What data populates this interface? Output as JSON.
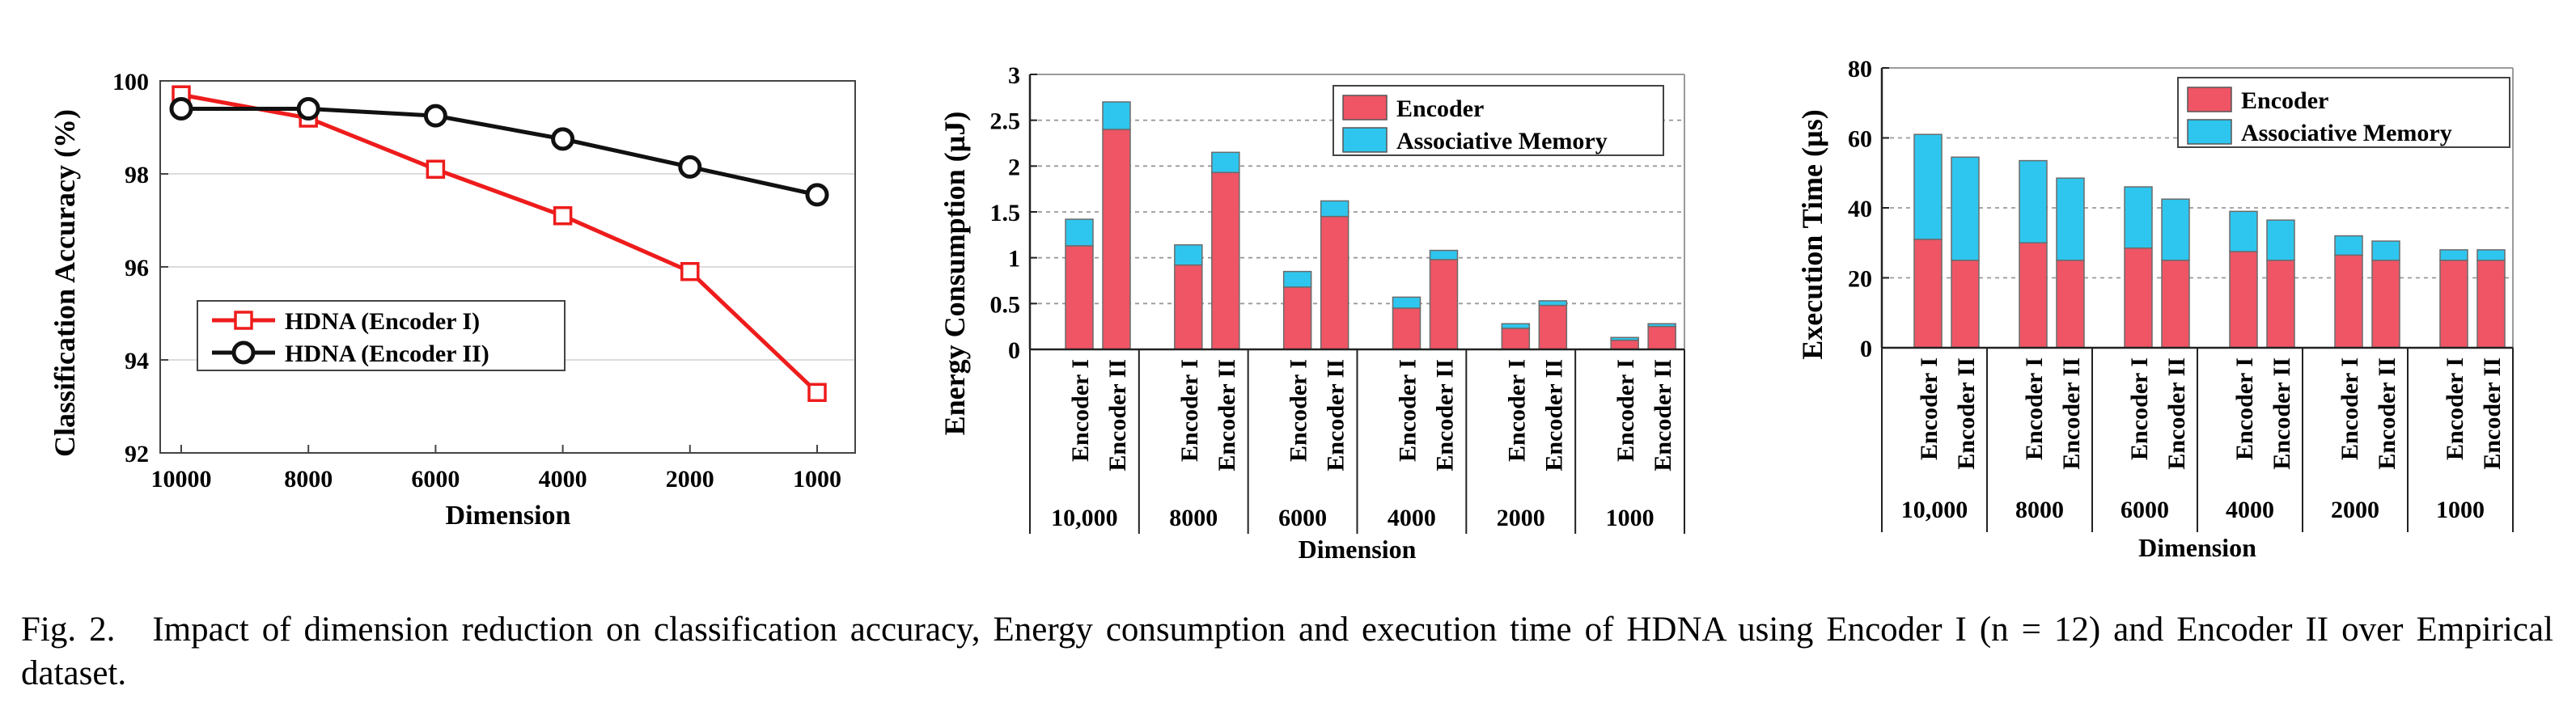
{
  "colors": {
    "red_series": "#ee1c1c",
    "black_series": "#111111",
    "encoder": "#ef5565",
    "associative_memory": "#2ec6ee",
    "grid": "#bdbdbd",
    "axis": "#444444"
  },
  "caption": {
    "label": "Fig. 2.",
    "text": "Impact of dimension reduction on classification accuracy, Energy consumption and execution time of HDNA using Encoder I (n = 12) and Encoder II over Empirical dataset."
  },
  "chart_data": [
    {
      "type": "line",
      "xlabel": "Dimension",
      "ylabel": "Classification Accuracy (%)",
      "x": [
        "10000",
        "8000",
        "6000",
        "4000",
        "2000",
        "1000"
      ],
      "ylim": [
        92,
        100
      ],
      "yticks": [
        "92",
        "94",
        "96",
        "98",
        "100"
      ],
      "grid": "horizontal",
      "legend_position": "bottom-left",
      "series": [
        {
          "name": "HDNA (Encoder I)",
          "marker": "square",
          "color": "#ee1c1c",
          "values": [
            99.7,
            99.2,
            98.1,
            97.1,
            95.9,
            93.3
          ]
        },
        {
          "name": "HDNA (Encoder II)",
          "marker": "circle",
          "color": "#111111",
          "values": [
            99.4,
            99.4,
            99.25,
            98.75,
            98.15,
            97.55
          ]
        }
      ]
    },
    {
      "type": "bar",
      "stacked": true,
      "xlabel": "Dimension",
      "ylabel": "Energy Consumption (µJ)",
      "ylim": [
        0,
        3
      ],
      "yticks": [
        "0",
        "0.5",
        "1",
        "1.5",
        "2",
        "2.5",
        "3"
      ],
      "grid": "horizontal-dotted",
      "legend_position": "top-right",
      "groups": [
        "10,000",
        "8000",
        "6000",
        "4000",
        "2000",
        "1000"
      ],
      "bar_labels": [
        "Encoder I",
        "Encoder II"
      ],
      "series": [
        {
          "name": "Encoder",
          "color": "#ef5565",
          "values": [
            [
              1.13,
              2.4
            ],
            [
              0.92,
              1.93
            ],
            [
              0.68,
              1.45
            ],
            [
              0.45,
              0.98
            ],
            [
              0.23,
              0.48
            ],
            [
              0.1,
              0.25
            ]
          ]
        },
        {
          "name": "Associative Memory",
          "color": "#2ec6ee",
          "values": [
            [
              0.29,
              0.3
            ],
            [
              0.22,
              0.22
            ],
            [
              0.17,
              0.17
            ],
            [
              0.12,
              0.1
            ],
            [
              0.05,
              0.05
            ],
            [
              0.03,
              0.03
            ]
          ]
        }
      ]
    },
    {
      "type": "bar",
      "stacked": true,
      "xlabel": "Dimension",
      "ylabel": "Execution Time (µs)",
      "ylim": [
        0,
        80
      ],
      "yticks": [
        "0",
        "20",
        "40",
        "60",
        "80"
      ],
      "grid": "horizontal-dotted",
      "legend_position": "top-right",
      "groups": [
        "10,000",
        "8000",
        "6000",
        "4000",
        "2000",
        "1000"
      ],
      "bar_labels": [
        "Encoder I",
        "Encoder II"
      ],
      "series": [
        {
          "name": "Encoder",
          "color": "#ef5565",
          "values": [
            [
              31,
              25
            ],
            [
              30,
              25
            ],
            [
              28.5,
              25
            ],
            [
              27.5,
              25
            ],
            [
              26.5,
              25
            ],
            [
              25,
              25
            ]
          ]
        },
        {
          "name": "Associative Memory",
          "color": "#2ec6ee",
          "values": [
            [
              30,
              29.5
            ],
            [
              23.5,
              23.5
            ],
            [
              17.5,
              17.5
            ],
            [
              11.5,
              11.5
            ],
            [
              5.5,
              5.5
            ],
            [
              3,
              3
            ]
          ]
        }
      ]
    }
  ]
}
